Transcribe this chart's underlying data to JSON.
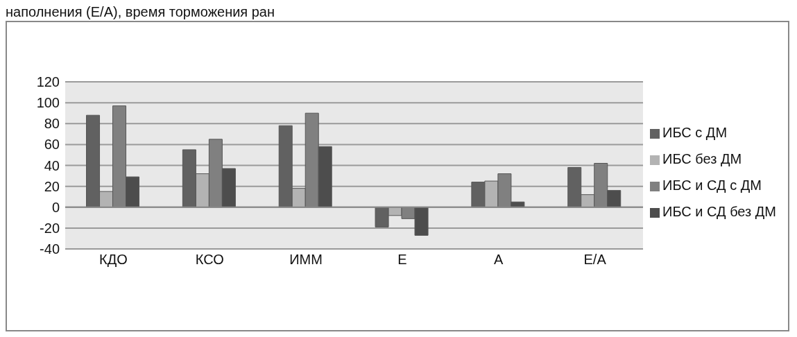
{
  "chart_data": {
    "type": "bar",
    "annotations": [
      "наполнения (Е/А), время торможения ран"
    ],
    "categories": [
      "КДО",
      "КСО",
      "ИММ",
      "Е",
      "А",
      "Е/А"
    ],
    "series": [
      {
        "name": "ИБС с ДМ",
        "color": "#616161",
        "values": [
          88,
          55,
          78,
          -19,
          24,
          38
        ]
      },
      {
        "name": "ИБС без ДМ",
        "color": "#b3b3b3",
        "values": [
          15,
          32,
          18,
          -8,
          25,
          12
        ]
      },
      {
        "name": "ИБС и СД с ДМ",
        "color": "#808080",
        "values": [
          97,
          65,
          90,
          -11,
          32,
          42
        ]
      },
      {
        "name": "ИБС и СД без ДМ",
        "color": "#4d4d4d",
        "values": [
          29,
          37,
          58,
          -27,
          5,
          16
        ]
      }
    ],
    "ylim": [
      -40,
      120
    ],
    "yticks": [
      -40,
      -20,
      0,
      20,
      40,
      60,
      80,
      100,
      120
    ],
    "grid": "y",
    "legend": "right"
  }
}
